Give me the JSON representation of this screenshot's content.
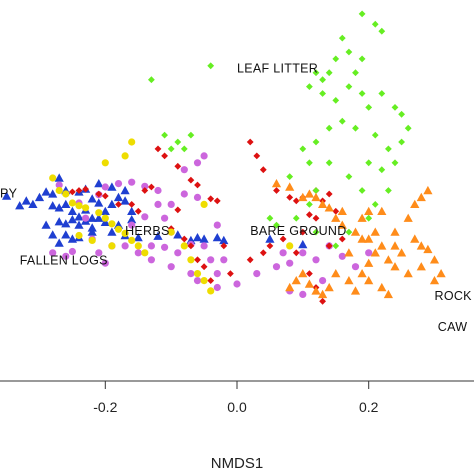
{
  "chart_data": {
    "type": "scatter",
    "title": "",
    "xlabel": "NMDS1",
    "ylabel": "",
    "xlim": [
      -0.36,
      0.36
    ],
    "ylim": [
      -0.215,
      0.335
    ],
    "x_ticks": [
      -0.2,
      0.0,
      0.2
    ],
    "x_tick_labels": [
      "-0.2",
      "0.0",
      "0.2"
    ],
    "grid": false,
    "legend": "none",
    "annotations": [
      {
        "text": "LEAF LITTER",
        "x": 0.0,
        "y": 0.23
      },
      {
        "text": "PY",
        "x": -0.36,
        "y": 0.05
      },
      {
        "text": "HERBS",
        "x": -0.17,
        "y": -0.004
      },
      {
        "text": "BARE GROUND",
        "x": 0.02,
        "y": -0.004
      },
      {
        "text": "FALLEN LOGS",
        "x": -0.33,
        "y": -0.047
      },
      {
        "text": "ROCK",
        "x": 0.3,
        "y": -0.098
      },
      {
        "text": "CAW",
        "x": 0.305,
        "y": -0.143
      }
    ],
    "series": [
      {
        "color": "#1f3fd1",
        "marker": "triangle",
        "points": [
          [
            -0.35,
            0.052
          ],
          [
            -0.33,
            0.038
          ],
          [
            -0.32,
            0.045
          ],
          [
            -0.31,
            0.04
          ],
          [
            -0.3,
            0.05
          ],
          [
            -0.29,
            0.058
          ],
          [
            -0.28,
            0.055
          ],
          [
            -0.27,
            0.035
          ],
          [
            -0.26,
            0.04
          ],
          [
            -0.28,
            0.038
          ],
          [
            -0.27,
            0.078
          ],
          [
            -0.26,
            0.06
          ],
          [
            -0.24,
            0.058
          ],
          [
            -0.23,
            0.062
          ],
          [
            -0.22,
            0.048
          ],
          [
            -0.25,
            0.03
          ],
          [
            -0.24,
            0.022
          ],
          [
            -0.27,
            0.015
          ],
          [
            -0.26,
            0.012
          ],
          [
            -0.25,
            0.018
          ],
          [
            -0.24,
            0.01
          ],
          [
            -0.23,
            0.016
          ],
          [
            -0.22,
            0.006
          ],
          [
            -0.21,
            0.02
          ],
          [
            -0.22,
            0.0
          ],
          [
            -0.24,
            -0.008
          ],
          [
            -0.25,
            -0.01
          ],
          [
            -0.26,
            -0.004
          ],
          [
            -0.27,
            -0.016
          ],
          [
            -0.28,
            -0.004
          ],
          [
            -0.29,
            0.01
          ],
          [
            -0.23,
            0.032
          ],
          [
            -0.21,
            0.042
          ],
          [
            -0.2,
            0.03
          ],
          [
            -0.19,
            0.04
          ],
          [
            -0.18,
            0.05
          ],
          [
            -0.17,
            0.045
          ],
          [
            -0.16,
            0.03
          ],
          [
            -0.2,
            0.014
          ],
          [
            -0.18,
            0.01
          ],
          [
            -0.19,
            0.0
          ],
          [
            -0.17,
            -0.005
          ],
          [
            -0.15,
            -0.008
          ],
          [
            -0.12,
            -0.006
          ],
          [
            -0.09,
            -0.004
          ],
          [
            -0.07,
            -0.012
          ],
          [
            -0.06,
            -0.008
          ],
          [
            -0.05,
            -0.01
          ],
          [
            -0.03,
            -0.008
          ],
          [
            -0.02,
            -0.012
          ],
          [
            0.05,
            -0.01
          ],
          [
            0.1,
            -0.018
          ],
          [
            -0.17,
            0.06
          ],
          [
            -0.19,
            0.065
          ],
          [
            -0.21,
            0.07
          ],
          [
            -0.22,
            0.02
          ],
          [
            -0.16,
            0.018
          ]
        ]
      },
      {
        "color": "#cc66dd",
        "marker": "circle",
        "points": [
          [
            -0.27,
            0.068
          ],
          [
            -0.24,
            0.042
          ],
          [
            -0.23,
            0.02
          ],
          [
            -0.21,
            0.054
          ],
          [
            -0.2,
            0.065
          ],
          [
            -0.18,
            0.07
          ],
          [
            -0.16,
            0.072
          ],
          [
            -0.14,
            0.066
          ],
          [
            -0.12,
            0.06
          ],
          [
            -0.1,
            0.04
          ],
          [
            -0.08,
            0.055
          ],
          [
            -0.06,
            0.05
          ],
          [
            -0.08,
            0.09
          ],
          [
            -0.06,
            0.1
          ],
          [
            -0.05,
            0.11
          ],
          [
            -0.11,
            0.02
          ],
          [
            -0.12,
            0.04
          ],
          [
            -0.14,
            0.022
          ],
          [
            -0.16,
            0.01
          ],
          [
            -0.13,
            -0.02
          ],
          [
            -0.11,
            -0.022
          ],
          [
            -0.09,
            -0.03
          ],
          [
            -0.1,
            -0.05
          ],
          [
            -0.13,
            -0.04
          ],
          [
            -0.15,
            -0.03
          ],
          [
            -0.17,
            -0.02
          ],
          [
            -0.19,
            -0.02
          ],
          [
            -0.21,
            -0.03
          ],
          [
            -0.2,
            -0.045
          ],
          [
            -0.22,
            -0.01
          ],
          [
            -0.25,
            -0.028
          ],
          [
            -0.26,
            -0.035
          ],
          [
            -0.28,
            -0.03
          ],
          [
            -0.07,
            -0.018
          ],
          [
            -0.04,
            -0.04
          ],
          [
            -0.03,
            -0.06
          ],
          [
            -0.02,
            -0.04
          ],
          [
            -0.06,
            -0.07
          ],
          [
            -0.07,
            -0.06
          ],
          [
            -0.03,
            -0.08
          ],
          [
            0.0,
            -0.075
          ],
          [
            0.03,
            -0.06
          ],
          [
            0.06,
            -0.05
          ],
          [
            0.08,
            -0.045
          ],
          [
            0.1,
            -0.03
          ],
          [
            0.12,
            -0.04
          ],
          [
            0.14,
            -0.02
          ],
          [
            0.16,
            -0.035
          ],
          [
            0.18,
            -0.05
          ],
          [
            0.2,
            -0.03
          ],
          [
            0.13,
            -0.07
          ],
          [
            0.1,
            -0.09
          ],
          [
            0.08,
            -0.085
          ],
          [
            -0.03,
            0.01
          ],
          [
            -0.1,
            0.0
          ],
          [
            -0.05,
            -0.02
          ],
          [
            0.07,
            -0.03
          ]
        ]
      },
      {
        "color": "#dd1111",
        "marker": "diamond",
        "points": [
          [
            -0.25,
            0.058
          ],
          [
            -0.24,
            0.06
          ],
          [
            -0.23,
            0.062
          ],
          [
            -0.21,
            0.055
          ],
          [
            -0.14,
            0.06
          ],
          [
            -0.13,
            0.065
          ],
          [
            -0.12,
            0.12
          ],
          [
            -0.11,
            0.11
          ],
          [
            -0.09,
            0.095
          ],
          [
            -0.07,
            0.075
          ],
          [
            -0.06,
            0.068
          ],
          [
            -0.04,
            0.048
          ],
          [
            -0.03,
            0.045
          ],
          [
            0.02,
            0.13
          ],
          [
            0.03,
            0.11
          ],
          [
            0.04,
            0.09
          ],
          [
            0.06,
            0.06
          ],
          [
            0.08,
            0.05
          ],
          [
            0.09,
            0.045
          ],
          [
            0.1,
            0.05
          ],
          [
            0.12,
            0.06
          ],
          [
            0.15,
            0.03
          ],
          [
            -0.09,
            0.032
          ],
          [
            -0.1,
            0.005
          ],
          [
            -0.08,
            -0.01
          ],
          [
            -0.07,
            -0.02
          ],
          [
            -0.06,
            -0.04
          ],
          [
            -0.05,
            -0.05
          ],
          [
            -0.04,
            -0.07
          ],
          [
            -0.01,
            -0.06
          ],
          [
            0.02,
            -0.04
          ],
          [
            0.04,
            -0.03
          ],
          [
            0.05,
            -0.02
          ],
          [
            0.09,
            -0.03
          ],
          [
            0.11,
            -0.06
          ],
          [
            0.12,
            -0.08
          ],
          [
            0.13,
            -0.1
          ],
          [
            0.14,
            -0.02
          ],
          [
            0.16,
            -0.01
          ],
          [
            -0.18,
            0.04
          ],
          [
            -0.2,
            0.052
          ],
          [
            -0.16,
            0.04
          ],
          [
            -0.15,
            0.03
          ],
          [
            0.1,
            0.0
          ],
          [
            0.07,
            -0.01
          ],
          [
            0.11,
            0.025
          ],
          [
            0.12,
            0.02
          ],
          [
            0.14,
            0.055
          ],
          [
            0.13,
            0.045
          ],
          [
            -0.02,
            -0.02
          ]
        ]
      },
      {
        "color": "#eedd00",
        "marker": "circle",
        "points": [
          [
            -0.28,
            0.078
          ],
          [
            -0.27,
            0.06
          ],
          [
            -0.26,
            0.055
          ],
          [
            -0.25,
            0.042
          ],
          [
            -0.24,
            0.038
          ],
          [
            -0.23,
            0.035
          ],
          [
            -0.21,
            0.028
          ],
          [
            -0.2,
            0.02
          ],
          [
            -0.19,
            0.012
          ],
          [
            -0.18,
            0.004
          ],
          [
            -0.17,
            -0.002
          ],
          [
            -0.16,
            -0.012
          ],
          [
            -0.15,
            -0.02
          ],
          [
            -0.14,
            -0.03
          ],
          [
            -0.1,
            0.0
          ],
          [
            -0.08,
            -0.02
          ],
          [
            -0.07,
            -0.04
          ],
          [
            -0.06,
            -0.06
          ],
          [
            -0.05,
            -0.07
          ],
          [
            -0.04,
            -0.085
          ],
          [
            -0.16,
            0.13
          ],
          [
            -0.2,
            0.1
          ],
          [
            -0.17,
            0.11
          ],
          [
            -0.24,
            -0.005
          ],
          [
            -0.22,
            -0.012
          ],
          [
            -0.19,
            -0.02
          ],
          [
            -0.05,
            0.04
          ],
          [
            0.08,
            -0.02
          ]
        ]
      },
      {
        "color": "#66ee22",
        "marker": "diamond",
        "points": [
          [
            0.19,
            0.315
          ],
          [
            0.21,
            0.3
          ],
          [
            0.22,
            0.29
          ],
          [
            0.16,
            0.28
          ],
          [
            0.17,
            0.26
          ],
          [
            0.15,
            0.25
          ],
          [
            0.19,
            0.25
          ],
          [
            0.18,
            0.23
          ],
          [
            0.14,
            0.23
          ],
          [
            0.13,
            0.22
          ],
          [
            0.12,
            0.23
          ],
          [
            0.11,
            0.21
          ],
          [
            0.13,
            0.2
          ],
          [
            0.15,
            0.19
          ],
          [
            0.17,
            0.21
          ],
          [
            0.19,
            0.2
          ],
          [
            0.2,
            0.18
          ],
          [
            0.22,
            0.2
          ],
          [
            0.24,
            0.18
          ],
          [
            0.25,
            0.17
          ],
          [
            0.26,
            0.15
          ],
          [
            0.25,
            0.13
          ],
          [
            0.23,
            0.12
          ],
          [
            0.21,
            0.14
          ],
          [
            0.18,
            0.15
          ],
          [
            0.16,
            0.16
          ],
          [
            0.14,
            0.15
          ],
          [
            0.12,
            0.13
          ],
          [
            0.1,
            0.12
          ],
          [
            0.14,
            0.1
          ],
          [
            0.2,
            0.1
          ],
          [
            0.22,
            0.09
          ],
          [
            0.24,
            0.1
          ],
          [
            0.17,
            0.08
          ],
          [
            0.12,
            0.06
          ],
          [
            0.11,
            0.04
          ],
          [
            0.09,
            0.02
          ],
          [
            0.12,
            0.0
          ],
          [
            0.06,
            0.01
          ],
          [
            0.05,
            0.02
          ],
          [
            0.08,
            0.08
          ],
          [
            0.11,
            0.1
          ],
          [
            0.19,
            0.06
          ],
          [
            0.21,
            0.04
          ],
          [
            0.23,
            0.06
          ],
          [
            0.2,
            0.02
          ],
          [
            0.17,
            0.0
          ],
          [
            0.15,
            -0.02
          ],
          [
            -0.04,
            0.24
          ],
          [
            -0.13,
            0.22
          ],
          [
            -0.09,
            0.13
          ],
          [
            -0.11,
            0.14
          ],
          [
            -0.07,
            0.14
          ],
          [
            -0.1,
            0.12
          ],
          [
            -0.08,
            0.12
          ]
        ]
      },
      {
        "color": "#ff8c1a",
        "marker": "triangle",
        "points": [
          [
            0.06,
            0.07
          ],
          [
            0.08,
            0.065
          ],
          [
            0.1,
            0.05
          ],
          [
            0.11,
            0.055
          ],
          [
            0.12,
            0.05
          ],
          [
            0.13,
            0.04
          ],
          [
            0.14,
            0.035
          ],
          [
            0.15,
            0.02
          ],
          [
            0.16,
            0.01
          ],
          [
            0.18,
            0.0
          ],
          [
            0.2,
            -0.01
          ],
          [
            0.22,
            -0.02
          ],
          [
            0.24,
            -0.02
          ],
          [
            0.25,
            -0.03
          ],
          [
            0.27,
            -0.01
          ],
          [
            0.28,
            -0.02
          ],
          [
            0.29,
            -0.025
          ],
          [
            0.3,
            -0.04
          ],
          [
            0.31,
            -0.06
          ],
          [
            0.3,
            -0.07
          ],
          [
            0.28,
            -0.05
          ],
          [
            0.26,
            -0.06
          ],
          [
            0.24,
            -0.05
          ],
          [
            0.23,
            -0.04
          ],
          [
            0.21,
            -0.03
          ],
          [
            0.2,
            -0.045
          ],
          [
            0.19,
            -0.06
          ],
          [
            0.17,
            -0.07
          ],
          [
            0.15,
            -0.06
          ],
          [
            0.14,
            -0.08
          ],
          [
            0.13,
            -0.09
          ],
          [
            0.12,
            -0.085
          ],
          [
            0.11,
            -0.075
          ],
          [
            0.1,
            -0.06
          ],
          [
            0.09,
            -0.07
          ],
          [
            0.08,
            -0.08
          ],
          [
            0.22,
            -0.08
          ],
          [
            0.23,
            -0.09
          ],
          [
            0.2,
            -0.07
          ],
          [
            0.18,
            -0.085
          ],
          [
            0.16,
            0.03
          ],
          [
            0.19,
            0.02
          ],
          [
            0.21,
            0.0
          ],
          [
            0.24,
            0.0
          ],
          [
            0.26,
            0.02
          ],
          [
            0.27,
            0.04
          ],
          [
            0.29,
            0.06
          ],
          [
            0.28,
            0.05
          ],
          [
            0.2,
            0.03
          ],
          [
            0.22,
            0.03
          ],
          [
            0.17,
            -0.03
          ],
          [
            0.19,
            -0.01
          ]
        ]
      }
    ]
  }
}
